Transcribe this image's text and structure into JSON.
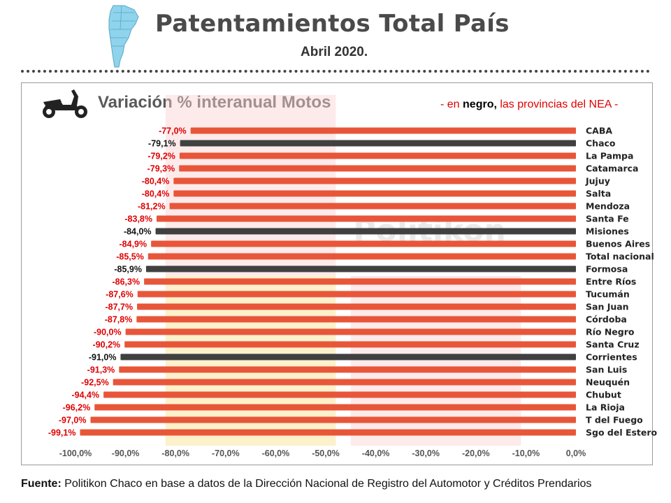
{
  "header": {
    "title": "Patentamientos Total País",
    "subtitle": "Abril 2020."
  },
  "chart_title": "Variación % interanual Motos",
  "legend_note": {
    "prefix": "- en ",
    "negro": "negro,",
    "rest": " las provincias del NEA -"
  },
  "watermark": "Politikon",
  "footer": {
    "label": "Fuente:",
    "text": " Politikon Chaco en base a datos de la Dirección Nacional de Registro del Automotor y Créditos Prendarios"
  },
  "colors": {
    "nea": "#404040",
    "other": "#e8563a",
    "nea_label": "#111111",
    "other_label": "#e00000"
  },
  "chart_data": {
    "type": "bar",
    "orientation": "horizontal",
    "xlim": [
      -100,
      0
    ],
    "xticks": [
      -100,
      -90,
      -80,
      -70,
      -60,
      -50,
      -40,
      -30,
      -20,
      -10,
      0
    ],
    "xtick_labels": [
      "-100,0%",
      "-90,0%",
      "-80,0%",
      "-70,0%",
      "-60,0%",
      "-50,0%",
      "-40,0%",
      "-30,0%",
      "-20,0%",
      "-10,0%",
      "0,0%"
    ],
    "categories": [
      "CABA",
      "Chaco",
      "La Pampa",
      "Catamarca",
      "Jujuy",
      "Salta",
      "Mendoza",
      "Santa Fe",
      "Misiones",
      "Buenos Aires",
      "Total nacional",
      "Formosa",
      "Entre Ríos",
      "Tucumán",
      "San Juan",
      "Córdoba",
      "Río Negro",
      "Santa Cruz",
      "Corrientes",
      "San Luis",
      "Neuquén",
      "Chubut",
      "La Rioja",
      "T del Fuego",
      "Sgo del Estero"
    ],
    "values": [
      -77.0,
      -79.1,
      -79.2,
      -79.3,
      -80.4,
      -80.4,
      -81.2,
      -83.8,
      -84.0,
      -84.9,
      -85.5,
      -85.9,
      -86.3,
      -87.6,
      -87.7,
      -87.8,
      -90.0,
      -90.2,
      -91.0,
      -91.3,
      -92.5,
      -94.4,
      -96.2,
      -97.0,
      -99.1
    ],
    "value_labels": [
      "-77,0%",
      "-79,1%",
      "-79,2%",
      "-79,3%",
      "-80,4%",
      "-80,4%",
      "-81,2%",
      "-83,8%",
      "-84,0%",
      "-84,9%",
      "-85,5%",
      "-85,9%",
      "-86,3%",
      "-87,6%",
      "-87,7%",
      "-87,8%",
      "-90,0%",
      "-90,2%",
      "-91,0%",
      "-91,3%",
      "-92,5%",
      "-94,4%",
      "-96,2%",
      "-97,0%",
      "-99,1%"
    ],
    "highlight_nea": [
      "Chaco",
      "Misiones",
      "Formosa",
      "Corrientes"
    ],
    "grid": false
  }
}
